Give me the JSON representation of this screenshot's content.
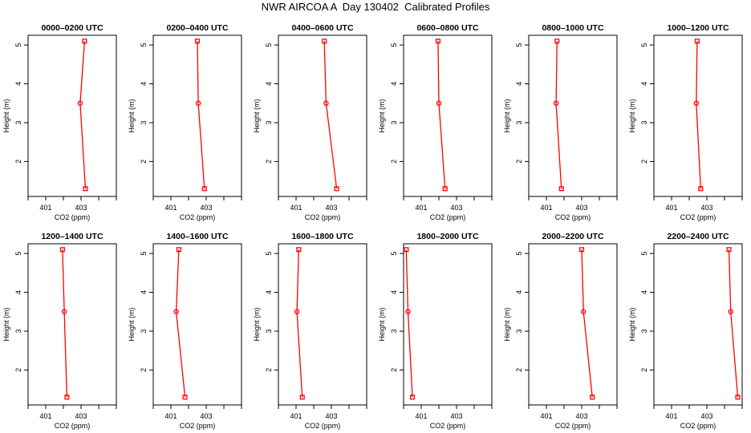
{
  "figure": {
    "title": "NWR AIRCOA A  Day 130402  Calibrated Profiles"
  },
  "chart_data": [
    {
      "type": "line",
      "title": "0000–0200 UTC",
      "xlabel": "CO2 (ppm)",
      "ylabel": "Height (m)",
      "xticks": [
        "401",
        "403"
      ],
      "yticks": [
        "2",
        "3",
        "4",
        "5"
      ],
      "xlim": [
        400,
        405
      ],
      "ylim": [
        1.1,
        5.25
      ],
      "series": [
        {
          "name": "profile",
          "color": "#ff0000",
          "x": [
            403.2,
            402.95,
            403.25
          ],
          "y": [
            5.1,
            3.5,
            1.3
          ]
        }
      ]
    },
    {
      "type": "line",
      "title": "0200–0400 UTC",
      "xlabel": "CO2 (ppm)",
      "ylabel": "Height (m)",
      "xticks": [
        "401",
        "403"
      ],
      "yticks": [
        "2",
        "3",
        "4",
        "5"
      ],
      "xlim": [
        400,
        405
      ],
      "ylim": [
        1.1,
        5.25
      ],
      "series": [
        {
          "name": "profile",
          "color": "#ff0000",
          "x": [
            402.5,
            402.55,
            402.9
          ],
          "y": [
            5.1,
            3.5,
            1.3
          ]
        }
      ]
    },
    {
      "type": "line",
      "title": "0400–0600 UTC",
      "xlabel": "CO2 (ppm)",
      "ylabel": "Height (m)",
      "xticks": [
        "401",
        "403"
      ],
      "yticks": [
        "2",
        "3",
        "4",
        "5"
      ],
      "xlim": [
        400,
        405
      ],
      "ylim": [
        1.1,
        5.25
      ],
      "series": [
        {
          "name": "profile",
          "color": "#ff0000",
          "x": [
            402.6,
            402.7,
            403.3
          ],
          "y": [
            5.1,
            3.5,
            1.3
          ]
        }
      ]
    },
    {
      "type": "line",
      "title": "0600–0800 UTC",
      "xlabel": "CO2 (ppm)",
      "ylabel": "Height (m)",
      "xticks": [
        "401",
        "403"
      ],
      "yticks": [
        "2",
        "3",
        "4",
        "5"
      ],
      "xlim": [
        400,
        405
      ],
      "ylim": [
        1.1,
        5.25
      ],
      "series": [
        {
          "name": "profile",
          "color": "#ff0000",
          "x": [
            401.95,
            402.0,
            402.35
          ],
          "y": [
            5.1,
            3.5,
            1.3
          ]
        }
      ]
    },
    {
      "type": "line",
      "title": "0800–1000 UTC",
      "xlabel": "CO2 (ppm)",
      "ylabel": "Height (m)",
      "xticks": [
        "401",
        "403"
      ],
      "yticks": [
        "2",
        "3",
        "4",
        "5"
      ],
      "xlim": [
        400,
        405
      ],
      "ylim": [
        1.1,
        5.25
      ],
      "series": [
        {
          "name": "profile",
          "color": "#ff0000",
          "x": [
            401.6,
            401.55,
            401.85
          ],
          "y": [
            5.1,
            3.5,
            1.3
          ]
        }
      ]
    },
    {
      "type": "line",
      "title": "1000–1200 UTC",
      "xlabel": "CO2 (ppm)",
      "ylabel": "Height (m)",
      "xticks": [
        "401",
        "403"
      ],
      "yticks": [
        "2",
        "3",
        "4",
        "5"
      ],
      "xlim": [
        400,
        405
      ],
      "ylim": [
        1.1,
        5.25
      ],
      "series": [
        {
          "name": "profile",
          "color": "#ff0000",
          "x": [
            402.45,
            402.4,
            402.65
          ],
          "y": [
            5.1,
            3.5,
            1.3
          ]
        }
      ]
    },
    {
      "type": "line",
      "title": "1200–1400 UTC",
      "xlabel": "CO2 (ppm)",
      "ylabel": "Height (m)",
      "xticks": [
        "401",
        "403"
      ],
      "yticks": [
        "2",
        "3",
        "4",
        "5"
      ],
      "xlim": [
        400,
        405
      ],
      "ylim": [
        1.1,
        5.25
      ],
      "series": [
        {
          "name": "profile",
          "color": "#ff0000",
          "x": [
            401.95,
            402.05,
            402.2
          ],
          "y": [
            5.1,
            3.5,
            1.3
          ]
        }
      ]
    },
    {
      "type": "line",
      "title": "1400–1600 UTC",
      "xlabel": "CO2 (ppm)",
      "ylabel": "Height (m)",
      "xticks": [
        "401",
        "403"
      ],
      "yticks": [
        "2",
        "3",
        "4",
        "5"
      ],
      "xlim": [
        400,
        405
      ],
      "ylim": [
        1.1,
        5.25
      ],
      "series": [
        {
          "name": "profile",
          "color": "#ff0000",
          "x": [
            401.45,
            401.3,
            401.8
          ],
          "y": [
            5.1,
            3.5,
            1.3
          ]
        }
      ]
    },
    {
      "type": "line",
      "title": "1600–1800 UTC",
      "xlabel": "CO2 (ppm)",
      "ylabel": "Height (m)",
      "xticks": [
        "401",
        "403"
      ],
      "yticks": [
        "2",
        "3",
        "4",
        "5"
      ],
      "xlim": [
        400,
        405
      ],
      "ylim": [
        1.1,
        5.25
      ],
      "series": [
        {
          "name": "profile",
          "color": "#ff0000",
          "x": [
            401.15,
            401.05,
            401.35
          ],
          "y": [
            5.1,
            3.5,
            1.3
          ]
        }
      ]
    },
    {
      "type": "line",
      "title": "1800–2000 UTC",
      "xlabel": "CO2 (ppm)",
      "ylabel": "Height (m)",
      "xticks": [
        "401",
        "403"
      ],
      "yticks": [
        "2",
        "3",
        "4",
        "5"
      ],
      "xlim": [
        400,
        405
      ],
      "ylim": [
        1.1,
        5.25
      ],
      "series": [
        {
          "name": "profile",
          "color": "#ff0000",
          "x": [
            400.15,
            400.25,
            400.5
          ],
          "y": [
            5.1,
            3.5,
            1.3
          ]
        }
      ]
    },
    {
      "type": "line",
      "title": "2000–2200 UTC",
      "xlabel": "CO2 (ppm)",
      "ylabel": "Height (m)",
      "xticks": [
        "401",
        "403"
      ],
      "yticks": [
        "2",
        "3",
        "4",
        "5"
      ],
      "xlim": [
        400,
        405
      ],
      "ylim": [
        1.1,
        5.25
      ],
      "series": [
        {
          "name": "profile",
          "color": "#ff0000",
          "x": [
            403.0,
            403.1,
            403.6
          ],
          "y": [
            5.1,
            3.5,
            1.3
          ]
        }
      ]
    },
    {
      "type": "line",
      "title": "2200–2400 UTC",
      "xlabel": "CO2 (ppm)",
      "ylabel": "Height (m)",
      "xticks": [
        "401",
        "403"
      ],
      "yticks": [
        "2",
        "3",
        "4",
        "5"
      ],
      "xlim": [
        400,
        405
      ],
      "ylim": [
        1.1,
        5.25
      ],
      "series": [
        {
          "name": "profile",
          "color": "#ff0000",
          "x": [
            404.25,
            404.35,
            404.75
          ],
          "y": [
            5.1,
            3.5,
            1.3
          ]
        }
      ]
    }
  ]
}
